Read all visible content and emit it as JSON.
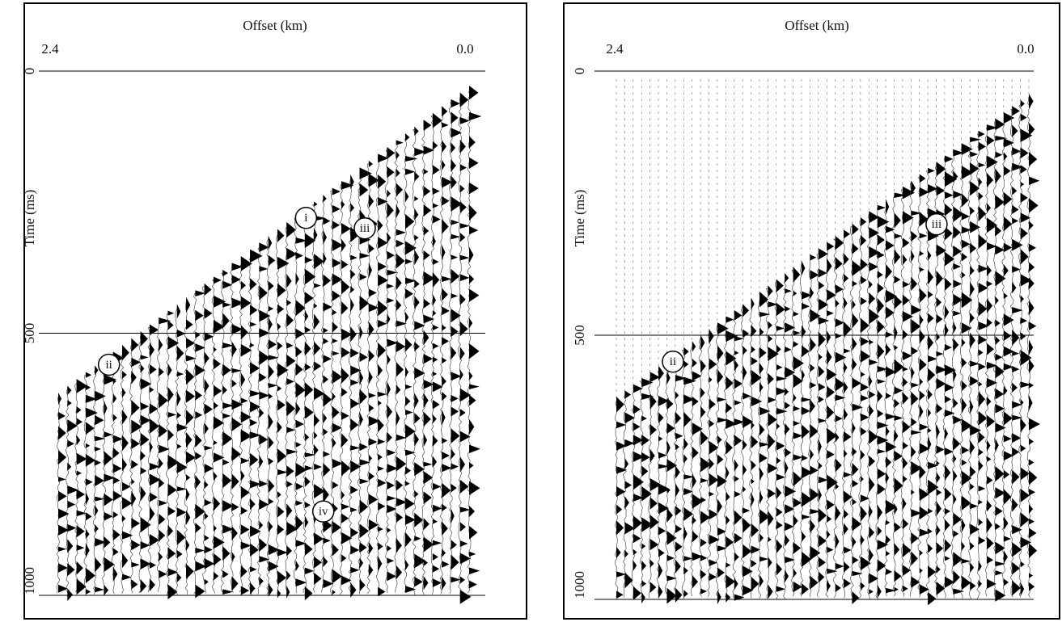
{
  "chart_data": [
    {
      "type": "seismic",
      "x_label": "Offset (km)",
      "y_label": "Time (ms)",
      "xlim": [
        2.4,
        0.0
      ],
      "xticks": [
        2.4,
        {
          "value": 0.0,
          "label": "0.0"
        }
      ],
      "ylim": [
        0,
        1000
      ],
      "yticks": [
        0,
        500,
        1000
      ],
      "annotations": [
        {
          "label": "i",
          "x": 0.92,
          "y": 280
        },
        {
          "label": "iii",
          "x": 0.58,
          "y": 300
        },
        {
          "label": "ii",
          "x": 2.06,
          "y": 560
        },
        {
          "label": "iv",
          "x": 0.82,
          "y": 840
        }
      ]
    },
    {
      "type": "seismic",
      "x_label": "Offset (km)",
      "y_label": "Time (ms)",
      "xlim": [
        2.4,
        0.0
      ],
      "xticks": [
        2.4,
        {
          "value": 0.0,
          "label": "0.0"
        }
      ],
      "ylim": [
        0,
        1000
      ],
      "yticks": [
        0,
        500,
        1000
      ],
      "annotations": [
        {
          "label": "iii",
          "x": 0.52,
          "y": 290
        },
        {
          "label": "ii",
          "x": 2.06,
          "y": 550
        }
      ]
    }
  ]
}
